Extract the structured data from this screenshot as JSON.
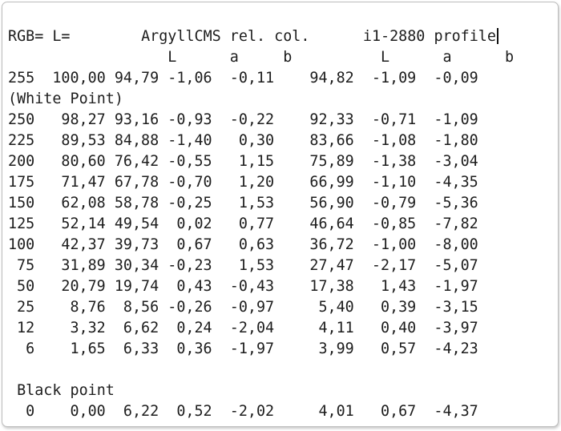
{
  "header": {
    "rgb_label": "RGB=",
    "l_label": "L=",
    "group1": "ArgyllCMS rel. col.",
    "group2": "i1-2880 profile",
    "subcolumns": [
      "L",
      "a",
      "b",
      "L",
      "a",
      "b"
    ]
  },
  "white_point_label": "(White Point)",
  "black_point_label": "Black point",
  "rows": [
    {
      "rgb": "255",
      "L": "100,00",
      "argyll": {
        "L": "94,79",
        "a": "-1,06",
        "b": "-0,11"
      },
      "i1": {
        "L": "94,82",
        "a": "-1,09",
        "b": "-0,09"
      }
    },
    {
      "rgb": "250",
      "L": "98,27",
      "argyll": {
        "L": "93,16",
        "a": "-0,93",
        "b": "-0,22"
      },
      "i1": {
        "L": "92,33",
        "a": "-0,71",
        "b": "-1,09"
      }
    },
    {
      "rgb": "225",
      "L": "89,53",
      "argyll": {
        "L": "84,88",
        "a": "-1,40",
        "b": "0,30"
      },
      "i1": {
        "L": "83,66",
        "a": "-1,08",
        "b": "-1,80"
      }
    },
    {
      "rgb": "200",
      "L": "80,60",
      "argyll": {
        "L": "76,42",
        "a": "-0,55",
        "b": "1,15"
      },
      "i1": {
        "L": "75,89",
        "a": "-1,38",
        "b": "-3,04"
      }
    },
    {
      "rgb": "175",
      "L": "71,47",
      "argyll": {
        "L": "67,78",
        "a": "-0,70",
        "b": "1,20"
      },
      "i1": {
        "L": "66,99",
        "a": "-1,10",
        "b": "-4,35"
      }
    },
    {
      "rgb": "150",
      "L": "62,08",
      "argyll": {
        "L": "58,78",
        "a": "-0,25",
        "b": "1,53"
      },
      "i1": {
        "L": "56,90",
        "a": "-0,79",
        "b": "-5,36"
      }
    },
    {
      "rgb": "125",
      "L": "52,14",
      "argyll": {
        "L": "49,54",
        "a": "0,02",
        "b": "0,77"
      },
      "i1": {
        "L": "46,64",
        "a": "-0,85",
        "b": "-7,82"
      }
    },
    {
      "rgb": "100",
      "L": "42,37",
      "argyll": {
        "L": "39,73",
        "a": "0,67",
        "b": "0,63"
      },
      "i1": {
        "L": "36,72",
        "a": "-1,00",
        "b": "-8,00"
      }
    },
    {
      "rgb": "75",
      "L": "31,89",
      "argyll": {
        "L": "30,34",
        "a": "-0,23",
        "b": "1,53"
      },
      "i1": {
        "L": "27,47",
        "a": "-2,17",
        "b": "-5,07"
      }
    },
    {
      "rgb": "50",
      "L": "20,79",
      "argyll": {
        "L": "19,74",
        "a": "0,43",
        "b": "-0,43"
      },
      "i1": {
        "L": "17,38",
        "a": "1,43",
        "b": "-1,97"
      }
    },
    {
      "rgb": "25",
      "L": "8,76",
      "argyll": {
        "L": "8,56",
        "a": "-0,26",
        "b": "-0,97"
      },
      "i1": {
        "L": "5,40",
        "a": "0,39",
        "b": "-3,15"
      }
    },
    {
      "rgb": "12",
      "L": "3,32",
      "argyll": {
        "L": "6,62",
        "a": "0,24",
        "b": "-2,04"
      },
      "i1": {
        "L": "4,11",
        "a": "0,40",
        "b": "-3,97"
      }
    },
    {
      "rgb": "6",
      "L": "1,65",
      "argyll": {
        "L": "6,33",
        "a": "0,36",
        "b": "-1,97"
      },
      "i1": {
        "L": "3,99",
        "a": "0,57",
        "b": "-4,23"
      }
    }
  ],
  "black_row": {
    "rgb": "0",
    "L": "0,00",
    "argyll": {
      "L": "6,22",
      "a": "0,52",
      "b": "-2,02"
    },
    "i1": {
      "L": "4,01",
      "a": "0,67",
      "b": "-4,37"
    }
  }
}
